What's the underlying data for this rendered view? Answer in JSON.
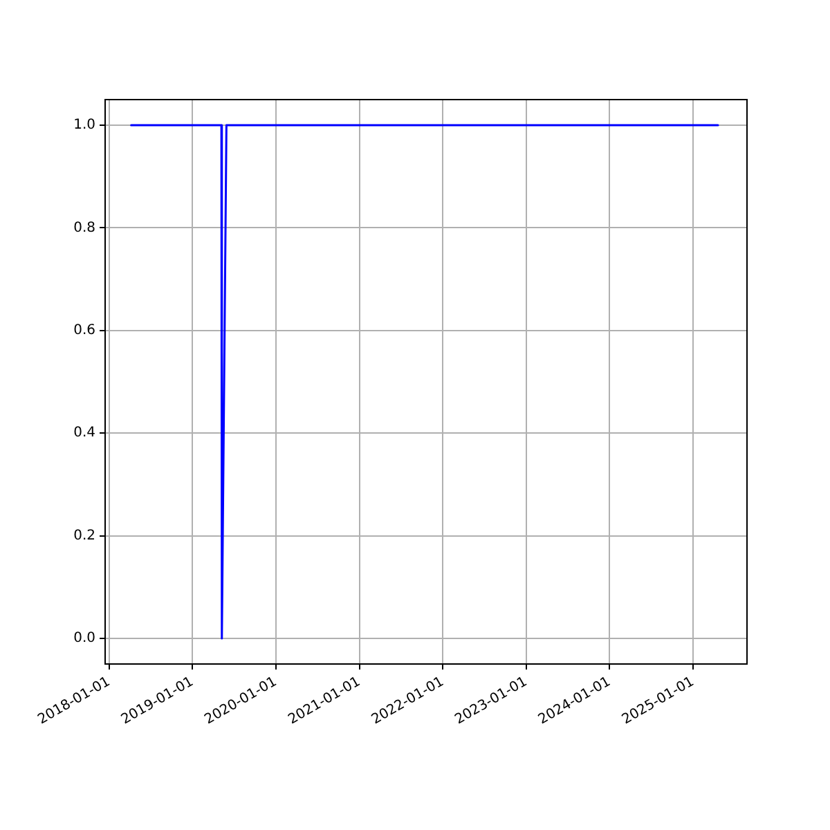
{
  "chart_data": {
    "type": "line",
    "x": [
      "2018-04-08",
      "2019-05-08",
      "2019-05-10",
      "2019-05-30",
      "2025-04-20"
    ],
    "series": [
      {
        "color": "#0000ff",
        "values": [
          1,
          1,
          0,
          1,
          1
        ]
      }
    ],
    "xlim": [
      "2017-12-15",
      "2025-08-25"
    ],
    "xticks": [
      "2018-01-01",
      "2019-01-01",
      "2020-01-01",
      "2021-01-01",
      "2022-01-01",
      "2023-01-01",
      "2024-01-01",
      "2025-01-01"
    ],
    "ylim": [
      -0.05,
      1.05
    ],
    "yticks": [
      {
        "value": 0,
        "label": "0.0"
      },
      {
        "value": 0.2,
        "label": "0.2"
      },
      {
        "value": 0.4,
        "label": "0.4"
      },
      {
        "value": 0.6,
        "label": "0.6"
      },
      {
        "value": 0.8,
        "label": "0.8"
      },
      {
        "value": 1,
        "label": "1.0"
      }
    ],
    "grid": true,
    "legend": false,
    "marker": "none",
    "line_style": "solid"
  }
}
